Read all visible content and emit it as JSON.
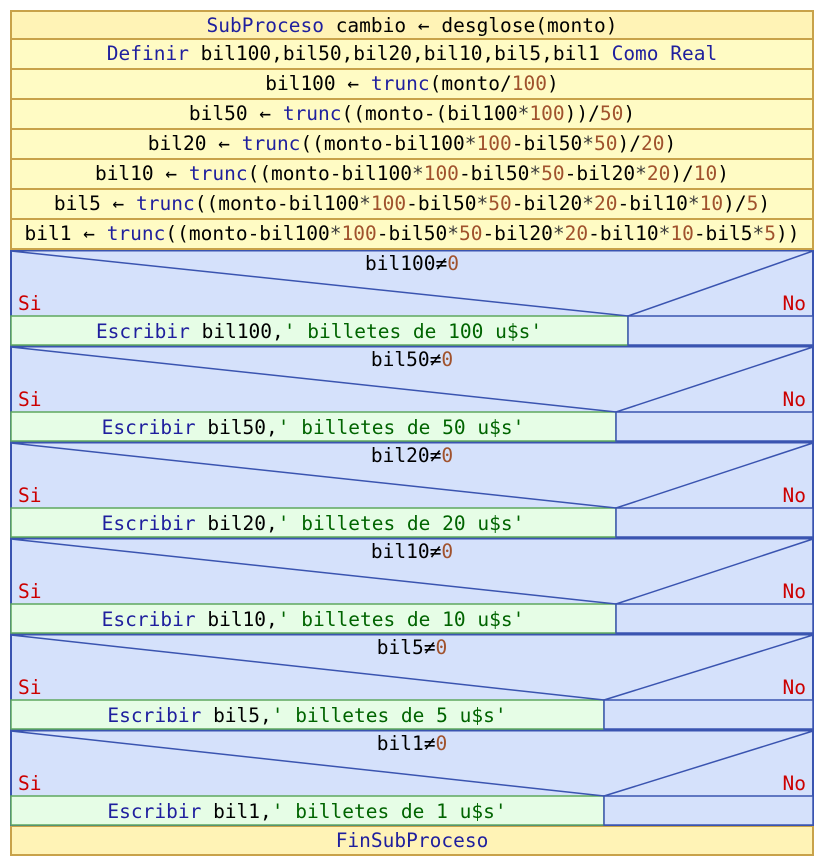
{
  "header": [
    {
      "t": "SubProceso",
      "c": "kw"
    },
    {
      "t": " cambio ← desglose(monto)",
      "c": "id"
    }
  ],
  "statements": [
    [
      {
        "t": "Definir",
        "c": "kw"
      },
      {
        "t": " bil100,bil50,bil20,bil10,bil5,bil1 ",
        "c": "id"
      },
      {
        "t": "Como Real",
        "c": "kw"
      }
    ],
    [
      {
        "t": "bil100 ← ",
        "c": "id"
      },
      {
        "t": "trunc",
        "c": "kw"
      },
      {
        "t": "(monto/",
        "c": "id"
      },
      {
        "t": "100",
        "c": "num"
      },
      {
        "t": ")",
        "c": "id"
      }
    ],
    [
      {
        "t": "bil50 ← ",
        "c": "id"
      },
      {
        "t": "trunc",
        "c": "kw"
      },
      {
        "t": "((monto-(bil100",
        "c": "id"
      },
      {
        "t": "*",
        "c": "op"
      },
      {
        "t": "100",
        "c": "num"
      },
      {
        "t": "))/",
        "c": "id"
      },
      {
        "t": "50",
        "c": "num"
      },
      {
        "t": ")",
        "c": "id"
      }
    ],
    [
      {
        "t": "bil20 ← ",
        "c": "id"
      },
      {
        "t": "trunc",
        "c": "kw"
      },
      {
        "t": "((monto-bil100",
        "c": "id"
      },
      {
        "t": "*",
        "c": "op"
      },
      {
        "t": "100",
        "c": "num"
      },
      {
        "t": "-bil50",
        "c": "id"
      },
      {
        "t": "*",
        "c": "op"
      },
      {
        "t": "50",
        "c": "num"
      },
      {
        "t": ")/",
        "c": "id"
      },
      {
        "t": "20",
        "c": "num"
      },
      {
        "t": ")",
        "c": "id"
      }
    ],
    [
      {
        "t": "bil10 ← ",
        "c": "id"
      },
      {
        "t": "trunc",
        "c": "kw"
      },
      {
        "t": "((monto-bil100",
        "c": "id"
      },
      {
        "t": "*",
        "c": "op"
      },
      {
        "t": "100",
        "c": "num"
      },
      {
        "t": "-bil50",
        "c": "id"
      },
      {
        "t": "*",
        "c": "op"
      },
      {
        "t": "50",
        "c": "num"
      },
      {
        "t": "-bil20",
        "c": "id"
      },
      {
        "t": "*",
        "c": "op"
      },
      {
        "t": "20",
        "c": "num"
      },
      {
        "t": ")/",
        "c": "id"
      },
      {
        "t": "10",
        "c": "num"
      },
      {
        "t": ")",
        "c": "id"
      }
    ],
    [
      {
        "t": "bil5 ← ",
        "c": "id"
      },
      {
        "t": "trunc",
        "c": "kw"
      },
      {
        "t": "((monto-bil100",
        "c": "id"
      },
      {
        "t": "*",
        "c": "op"
      },
      {
        "t": "100",
        "c": "num"
      },
      {
        "t": "-bil50",
        "c": "id"
      },
      {
        "t": "*",
        "c": "op"
      },
      {
        "t": "50",
        "c": "num"
      },
      {
        "t": "-bil20",
        "c": "id"
      },
      {
        "t": "*",
        "c": "op"
      },
      {
        "t": "20",
        "c": "num"
      },
      {
        "t": "-bil10",
        "c": "id"
      },
      {
        "t": "*",
        "c": "op"
      },
      {
        "t": "10",
        "c": "num"
      },
      {
        "t": ")/",
        "c": "id"
      },
      {
        "t": "5",
        "c": "num"
      },
      {
        "t": ")",
        "c": "id"
      }
    ],
    [
      {
        "t": "bil1 ← ",
        "c": "id"
      },
      {
        "t": "trunc",
        "c": "kw"
      },
      {
        "t": "((monto-bil100",
        "c": "id"
      },
      {
        "t": "*",
        "c": "op"
      },
      {
        "t": "100",
        "c": "num"
      },
      {
        "t": "-bil50",
        "c": "id"
      },
      {
        "t": "*",
        "c": "op"
      },
      {
        "t": "50",
        "c": "num"
      },
      {
        "t": "-bil20",
        "c": "id"
      },
      {
        "t": "*",
        "c": "op"
      },
      {
        "t": "20",
        "c": "num"
      },
      {
        "t": "-bil10",
        "c": "id"
      },
      {
        "t": "*",
        "c": "op"
      },
      {
        "t": "10",
        "c": "num"
      },
      {
        "t": "-bil5",
        "c": "id"
      },
      {
        "t": "*",
        "c": "op"
      },
      {
        "t": "5",
        "c": "num"
      },
      {
        "t": "))",
        "c": "id"
      }
    ]
  ],
  "conditions": [
    {
      "var": "bil100",
      "op": "≠",
      "zero": "0",
      "si": "Si",
      "no": "No",
      "then": [
        {
          "t": "Escribir",
          "c": "kw"
        },
        {
          "t": " bil100,",
          "c": "id"
        },
        {
          "t": "' billetes de 100 u$s'",
          "c": "str"
        }
      ],
      "split": 0.769
    },
    {
      "var": "bil50",
      "op": "≠",
      "zero": "0",
      "si": "Si",
      "no": "No",
      "then": [
        {
          "t": "Escribir",
          "c": "kw"
        },
        {
          "t": " bil50,",
          "c": "id"
        },
        {
          "t": "' billetes de 50 u$s'",
          "c": "str"
        }
      ],
      "split": 0.754
    },
    {
      "var": "bil20",
      "op": "≠",
      "zero": "0",
      "si": "Si",
      "no": "No",
      "then": [
        {
          "t": "Escribir",
          "c": "kw"
        },
        {
          "t": " bil20,",
          "c": "id"
        },
        {
          "t": "' billetes de 20 u$s'",
          "c": "str"
        }
      ],
      "split": 0.754
    },
    {
      "var": "bil10",
      "op": "≠",
      "zero": "0",
      "si": "Si",
      "no": "No",
      "then": [
        {
          "t": "Escribir",
          "c": "kw"
        },
        {
          "t": " bil10,",
          "c": "id"
        },
        {
          "t": "' billetes de 10 u$s'",
          "c": "str"
        }
      ],
      "split": 0.754
    },
    {
      "var": "bil5",
      "op": "≠",
      "zero": "0",
      "si": "Si",
      "no": "No",
      "then": [
        {
          "t": "Escribir",
          "c": "kw"
        },
        {
          "t": " bil5,",
          "c": "id"
        },
        {
          "t": "' billetes de 5 u$s'",
          "c": "str"
        }
      ],
      "split": 0.739
    },
    {
      "var": "bil1",
      "op": "≠",
      "zero": "0",
      "si": "Si",
      "no": "No",
      "then": [
        {
          "t": "Escribir",
          "c": "kw"
        },
        {
          "t": " bil1,",
          "c": "id"
        },
        {
          "t": "' billetes de 1 u$s'",
          "c": "str"
        }
      ],
      "split": 0.739
    }
  ],
  "footer": [
    {
      "t": "FinSubProceso",
      "c": "kw"
    }
  ],
  "colors": {
    "process_fill": "#fff3b6",
    "statement_fill": "#fffbc4",
    "process_border": "#c8a24a",
    "condition_fill": "#d5e1fb",
    "condition_border": "#3a54b0",
    "then_fill": "#e6fde6",
    "then_border": "#5fa85f"
  }
}
